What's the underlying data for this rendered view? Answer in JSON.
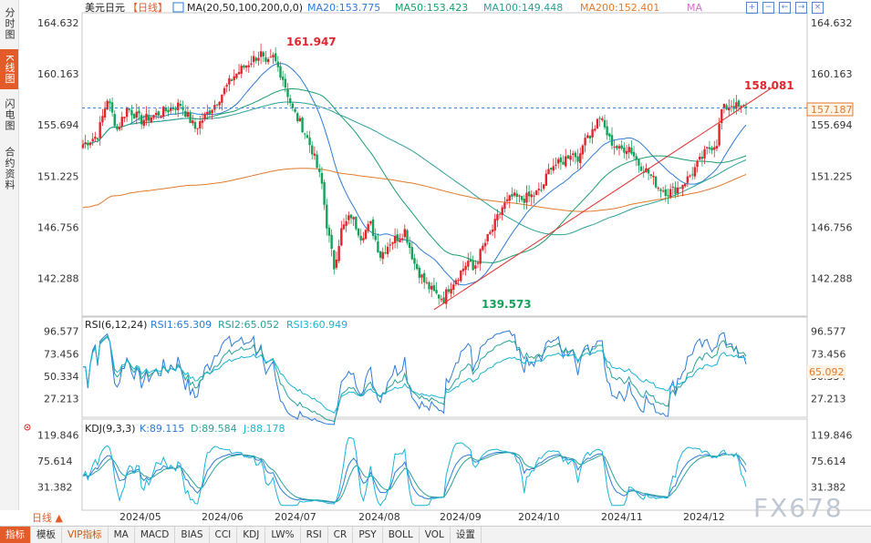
{
  "left_tabs": [
    "分时图",
    "K线图",
    "闪电图",
    "合约资料"
  ],
  "active_left_tab": 1,
  "header": {
    "symbol": "美元日元",
    "period_tag": "【日线】",
    "ma_label": "MA(20,50,100,200,0,0)",
    "ma20": "MA20:153.775",
    "ma50": "MA50:153.423",
    "ma100": "MA100:149.448",
    "ma200": "MA200:152.401",
    "ma_extra": "MA"
  },
  "toolbar_icons": [
    "+",
    "−",
    "←",
    "→",
    "×"
  ],
  "price_axis": {
    "labels": [
      "164.632",
      "160.163",
      "155.694",
      "151.225",
      "146.756",
      "142.288"
    ],
    "current": "157.187"
  },
  "annotations": {
    "high": "161.947",
    "low": "139.573",
    "recent_high": "158.081"
  },
  "rsi": {
    "title": "RSI(6,12,24)",
    "rsi1": "RSI1:65.309",
    "rsi2": "RSI2:65.052",
    "rsi3": "RSI3:60.949",
    "labels": [
      "96.577",
      "73.456",
      "50.334",
      "27.213"
    ],
    "current": "65.092"
  },
  "kdj": {
    "title": "KDJ(9,3,3)",
    "k": "K:89.115",
    "d": "D:89.584",
    "j": "J:88.178",
    "labels": [
      "119.846",
      "75.614",
      "31.382"
    ]
  },
  "x_axis": [
    "2024/05",
    "2024/06",
    "2024/07",
    "2024/08",
    "2024/09",
    "2024/10",
    "2024/11",
    "2024/12"
  ],
  "period_button": "日线 ▲",
  "bottom_tabs": [
    "指标",
    "模板",
    "VIP指标",
    "MA",
    "MACD",
    "BIAS",
    "CCI",
    "KDJ",
    "LW%",
    "RSI",
    "CR",
    "PSY",
    "BOLL",
    "VOL",
    "设置"
  ],
  "active_bottom_tab": 0,
  "watermark": "FX678",
  "colors": {
    "up": "#e0262d",
    "down": "#15a15a",
    "ma20": "#2e7bd6",
    "ma50": "#1a9e6a",
    "ma100": "#2aa198",
    "ma200": "#e07a2b",
    "trend": "#e03030",
    "rsi1": "#2e7bd6",
    "rsi2": "#2aa198",
    "rsi3": "#19b4d6"
  },
  "chart_data": {
    "type": "candlestick",
    "ylim": [
      139.0,
      165.5
    ],
    "anchors": [
      [
        0,
        154.0
      ],
      [
        6,
        154.8
      ],
      [
        10,
        158.0
      ],
      [
        14,
        155.3
      ],
      [
        18,
        157.2
      ],
      [
        24,
        156.1
      ],
      [
        30,
        156.6
      ],
      [
        40,
        157.5
      ],
      [
        46,
        155.4
      ],
      [
        54,
        157.5
      ],
      [
        62,
        160.0
      ],
      [
        70,
        161.5
      ],
      [
        73,
        161.9
      ],
      [
        75,
        160.8
      ],
      [
        78,
        161.6
      ],
      [
        82,
        159.8
      ],
      [
        86,
        157.0
      ],
      [
        90,
        155.5
      ],
      [
        94,
        153.5
      ],
      [
        98,
        150.5
      ],
      [
        100,
        147.0
      ],
      [
        103,
        143.3
      ],
      [
        106,
        146.5
      ],
      [
        110,
        147.8
      ],
      [
        114,
        146.0
      ],
      [
        118,
        147.0
      ],
      [
        122,
        144.3
      ],
      [
        126,
        145.5
      ],
      [
        130,
        146.0
      ],
      [
        132,
        146.5
      ],
      [
        136,
        143.6
      ],
      [
        140,
        142.0
      ],
      [
        144,
        141.0
      ],
      [
        148,
        140.5
      ],
      [
        150,
        141.5
      ],
      [
        154,
        142.6
      ],
      [
        158,
        143.8
      ],
      [
        160,
        143.0
      ],
      [
        164,
        145.0
      ],
      [
        168,
        146.6
      ],
      [
        172,
        148.5
      ],
      [
        176,
        149.4
      ],
      [
        180,
        149.2
      ],
      [
        184,
        149.5
      ],
      [
        188,
        150.0
      ],
      [
        192,
        152.2
      ],
      [
        196,
        152.3
      ],
      [
        200,
        153.3
      ],
      [
        204,
        152.8
      ],
      [
        206,
        155.0
      ],
      [
        208,
        154.8
      ],
      [
        212,
        156.4
      ],
      [
        216,
        154.4
      ],
      [
        220,
        153.5
      ],
      [
        224,
        153.8
      ],
      [
        228,
        152.3
      ],
      [
        232,
        151.5
      ],
      [
        236,
        150.3
      ],
      [
        240,
        149.8
      ],
      [
        244,
        150.2
      ],
      [
        248,
        151.0
      ],
      [
        252,
        152.2
      ],
      [
        256,
        153.5
      ],
      [
        260,
        154.2
      ],
      [
        262,
        157.0
      ],
      [
        266,
        157.5
      ],
      [
        270,
        157.1
      ],
      [
        272,
        157.4
      ]
    ],
    "trend_line": [
      [
        144,
        139.57
      ],
      [
        283,
        159.0
      ]
    ],
    "dashed_level": 157.187
  }
}
